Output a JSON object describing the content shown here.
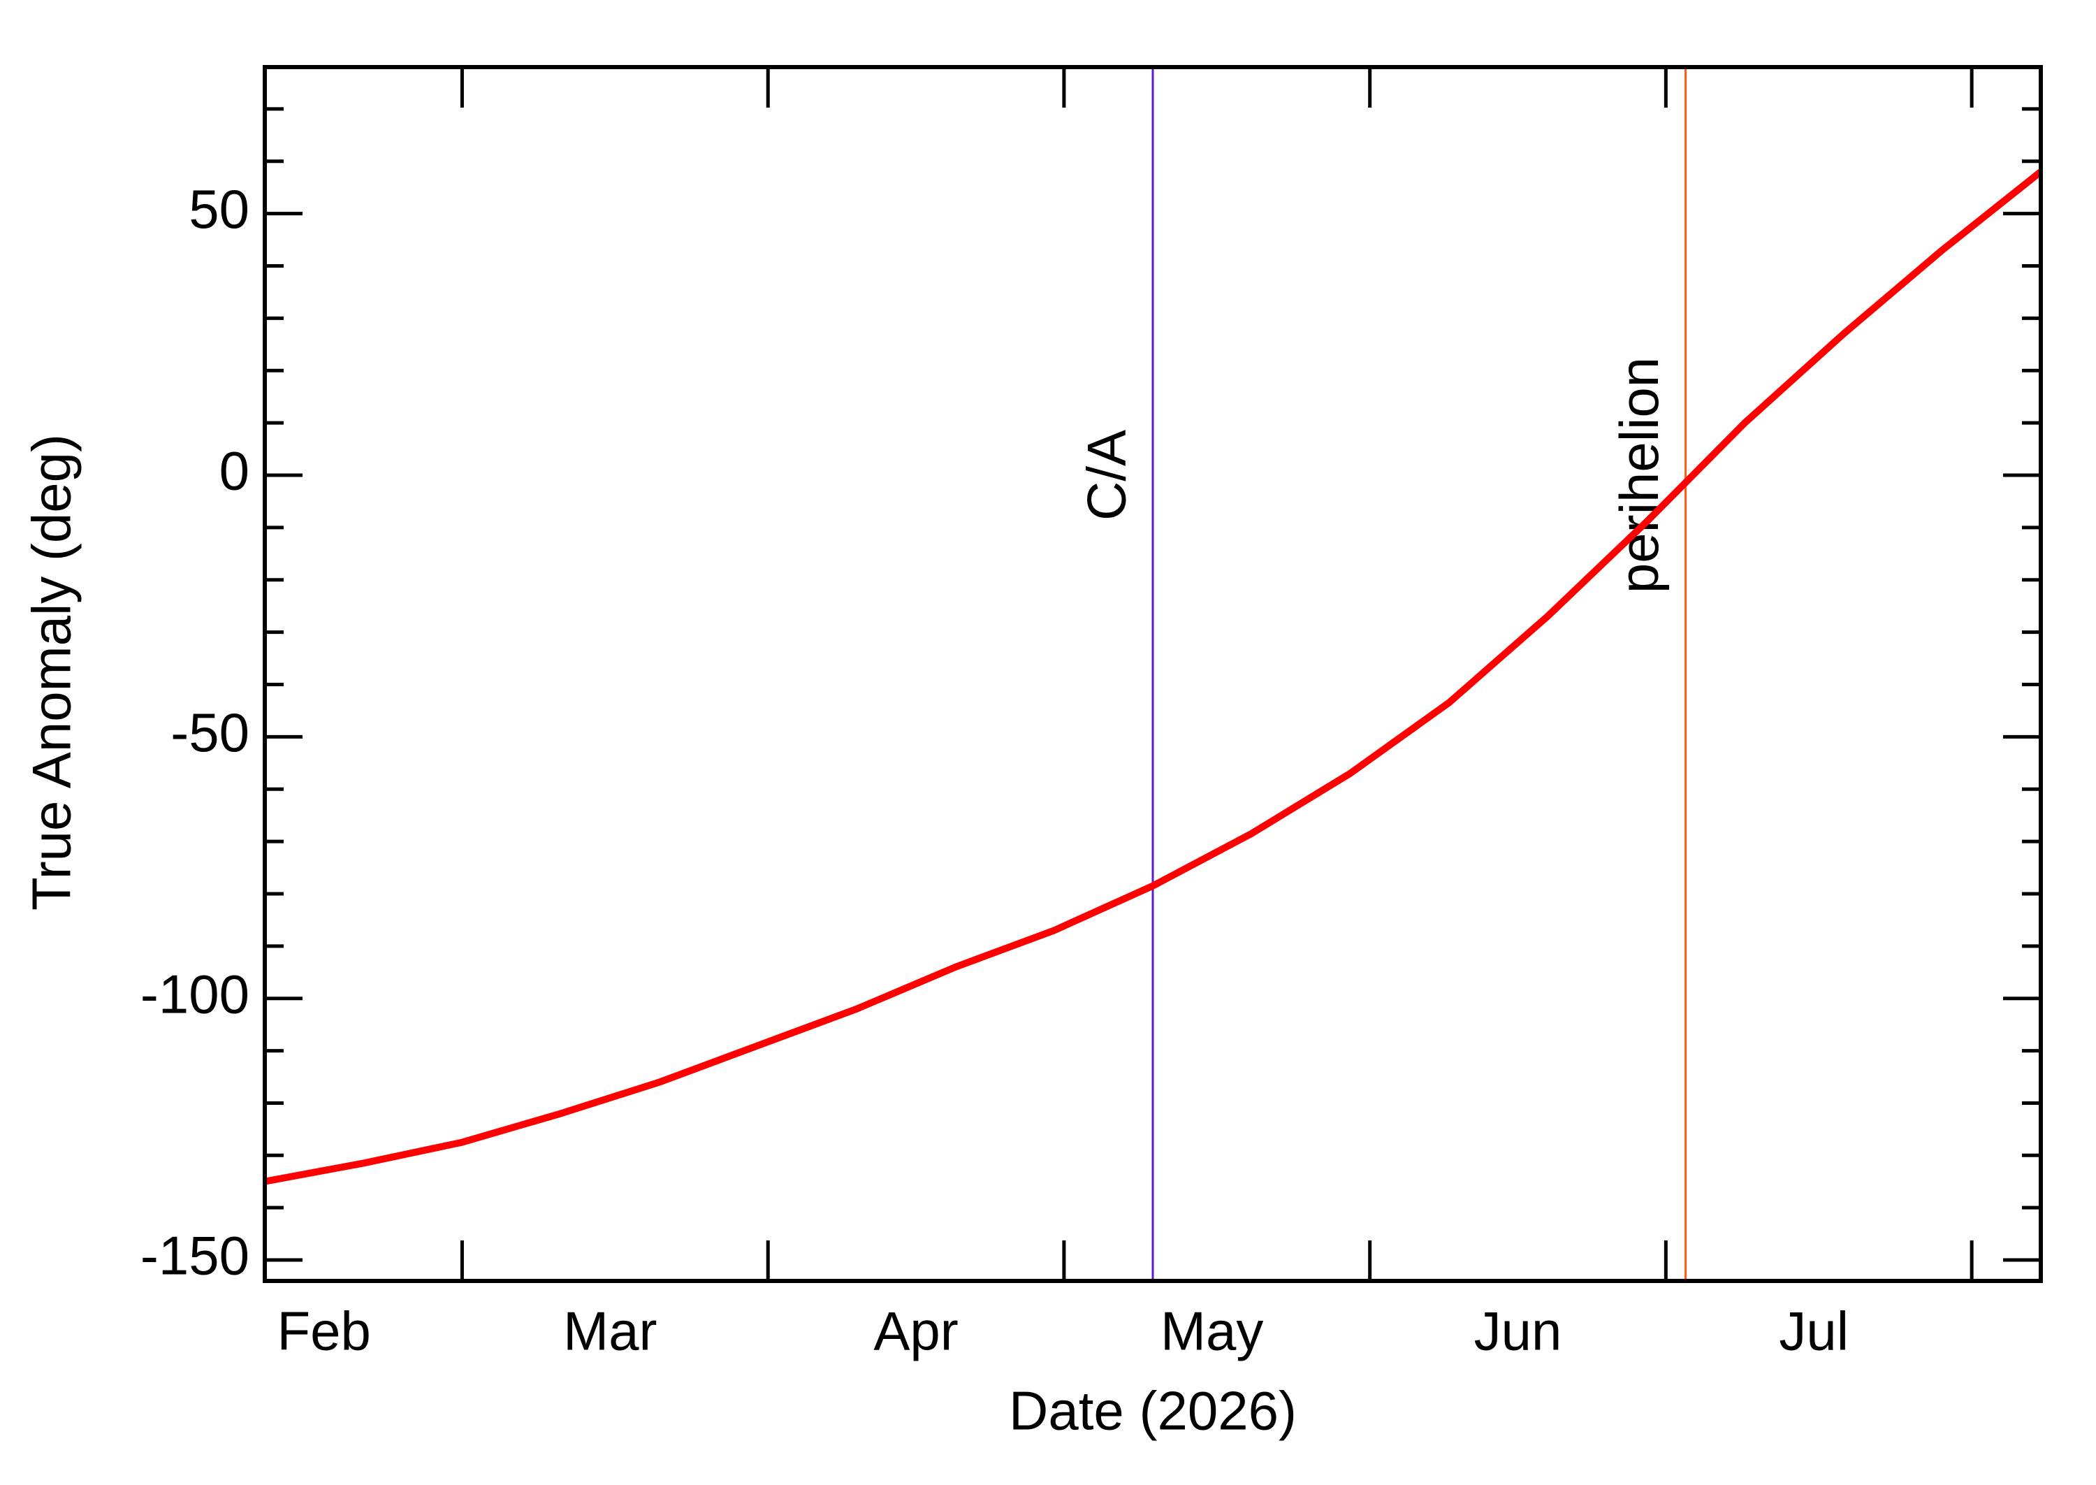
{
  "chart_data": {
    "type": "line",
    "x_label": "Date (2026)",
    "y_label": "True Anomaly (deg)",
    "x": [
      40,
      50,
      60,
      70,
      80,
      90,
      100,
      110,
      120,
      130,
      140,
      150,
      160,
      170,
      180,
      190,
      200,
      210,
      220
    ],
    "series": [
      {
        "color": "#ff0000",
        "values": [
          -135,
          -131.5,
          -127.5,
          -122,
          -116,
          -109,
          -102,
          -94,
          -87,
          -78.5,
          -68.5,
          -57,
          -43.5,
          -27,
          -9,
          10,
          27,
          43,
          58
        ]
      }
    ],
    "xlim": [
      40,
      220
    ],
    "xticks": [
      60,
      91,
      121,
      152,
      182,
      213
    ],
    "xlabels": [
      {
        "value": 46,
        "label": "Feb"
      },
      {
        "value": 75,
        "label": "Mar"
      },
      {
        "value": 106,
        "label": "Apr"
      },
      {
        "value": 136,
        "label": "May"
      },
      {
        "value": 167,
        "label": "Jun"
      },
      {
        "value": 197,
        "label": "Jul"
      }
    ],
    "ylim": [
      -154,
      78
    ],
    "yticks": [
      -150,
      -100,
      -50,
      0,
      50
    ],
    "yminorticks": [
      -140,
      -130,
      -120,
      -110,
      -90,
      -80,
      -70,
      -60,
      -40,
      -30,
      -20,
      -10,
      10,
      20,
      30,
      40,
      60,
      70
    ],
    "markers": [
      {
        "x": 130,
        "label": "C/A",
        "color": "#5a1ecf"
      },
      {
        "x": 184,
        "label": "perihelion",
        "color": "#ff5a14"
      }
    ]
  }
}
